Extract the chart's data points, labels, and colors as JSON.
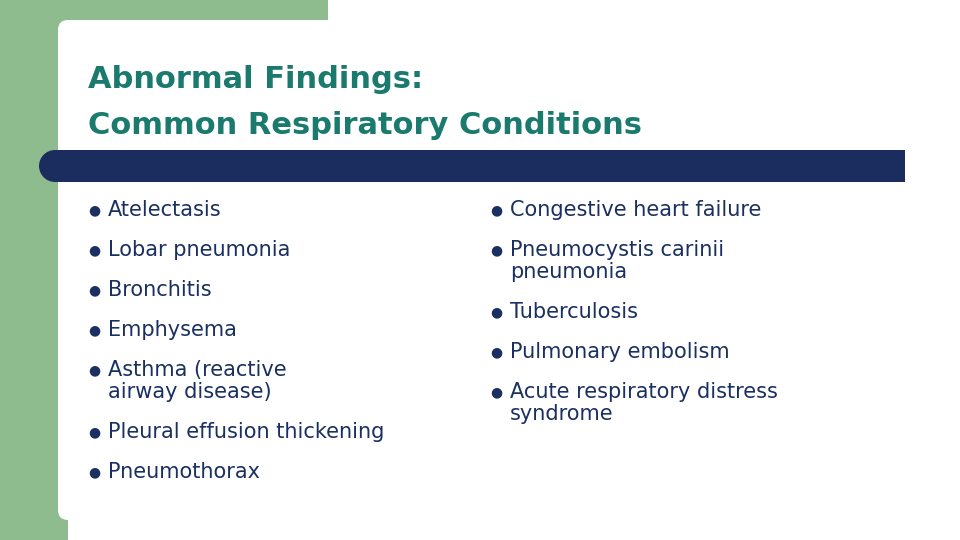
{
  "title_line1": "Abnormal Findings:",
  "title_line2": "Common Respiratory Conditions",
  "title_color": "#1a7a6e",
  "background_color": "#ffffff",
  "left_bar_color": "#8fbc8f",
  "divider_color": "#1b2d5e",
  "bullet_color": "#1a3060",
  "text_color": "#1a3060",
  "left_column": [
    "Atelectasis",
    "Lobar pneumonia",
    "Bronchitis",
    "Emphysema",
    "Asthma (reactive\nairway disease)",
    "Pleural effusion thickening",
    "Pneumothorax"
  ],
  "right_column": [
    "Congestive heart failure",
    "Pneumocystis carinii\npneumonia",
    "Tuberculosis",
    "Pulmonary embolism",
    "Acute respiratory distress\nsyndrome"
  ],
  "fig_width": 9.6,
  "fig_height": 5.4,
  "dpi": 100
}
